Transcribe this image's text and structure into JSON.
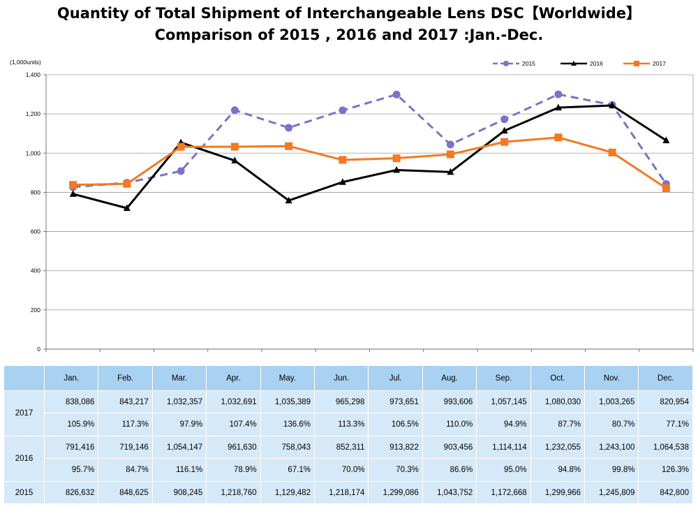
{
  "title_line1": "Quantity of Total Shipment of Interchangeable Lens DSC【Worldwide】",
  "title_line2": "Comparison of 2015 , 2016 and 2017 :Jan.-Dec.",
  "chart_data": {
    "type": "line",
    "unit_label": "(1,000units)",
    "categories": [
      "Jan.",
      "Feb.",
      "Mar.",
      "Apr.",
      "May.",
      "Jun.",
      "Jul.",
      "Aug.",
      "Sep.",
      "Oct.",
      "Nov.",
      "Dec."
    ],
    "ylim": [
      0,
      1400
    ],
    "yticks": [
      "0",
      "200",
      "400",
      "600",
      "800",
      "1,000",
      "1,200",
      "1,400"
    ],
    "ytick_values": [
      0,
      200,
      400,
      600,
      800,
      1000,
      1200,
      1400
    ],
    "grid": "horizontal",
    "legend_position": "top-right",
    "series": [
      {
        "name": "2015",
        "color": "#7b72c9",
        "style": "dashed",
        "marker": "circle",
        "values": [
          826.632,
          848.625,
          908.245,
          1218.76,
          1129.482,
          1218.174,
          1299.086,
          1043.752,
          1172.668,
          1299.966,
          1245.809,
          842.8
        ]
      },
      {
        "name": "2016",
        "color": "#000000",
        "style": "solid",
        "marker": "triangle",
        "values": [
          791.416,
          719.146,
          1054.147,
          961.63,
          758.043,
          852.311,
          913.822,
          903.456,
          1114.114,
          1232.055,
          1243.1,
          1064.538
        ]
      },
      {
        "name": "2017",
        "color": "#f47920",
        "style": "solid",
        "marker": "square",
        "values": [
          838.086,
          843.217,
          1032.357,
          1032.691,
          1035.389,
          965.298,
          973.651,
          993.606,
          1057.145,
          1080.03,
          1003.265,
          820.954
        ]
      }
    ]
  },
  "table": {
    "header": [
      "",
      "Jan.",
      "Feb.",
      "Mar.",
      "Apr.",
      "May.",
      "Jun.",
      "Jul.",
      "Aug.",
      "Sep.",
      "Oct.",
      "Nov.",
      "Dec."
    ],
    "rows": [
      {
        "year": "2017",
        "units": [
          "838,086",
          "843,217",
          "1,032,357",
          "1,032,691",
          "1,035,389",
          "965,298",
          "973,651",
          "993,606",
          "1,057,145",
          "1,080,030",
          "1,003,265",
          "820,954"
        ],
        "pct": [
          "105.9%",
          "117.3%",
          "97.9%",
          "107.4%",
          "136.6%",
          "113.3%",
          "106.5%",
          "110.0%",
          "94.9%",
          "87.7%",
          "80.7%",
          "77.1%"
        ]
      },
      {
        "year": "2016",
        "units": [
          "791,416",
          "719,146",
          "1,054,147",
          "961,630",
          "758,043",
          "852,311",
          "913,822",
          "903,456",
          "1,114,114",
          "1,232,055",
          "1,243,100",
          "1,064,538"
        ],
        "pct": [
          "95.7%",
          "84.7%",
          "116.1%",
          "78.9%",
          "67.1%",
          "70.0%",
          "70.3%",
          "86.6%",
          "95.0%",
          "94.8%",
          "99.8%",
          "126.3%"
        ]
      },
      {
        "year": "2015",
        "units": [
          "826,632",
          "848,625",
          "908,245",
          "1,218,760",
          "1,129,482",
          "1,218,174",
          "1,299,086",
          "1,043,752",
          "1,172,668",
          "1,299,966",
          "1,245,809",
          "842,800"
        ]
      }
    ]
  }
}
